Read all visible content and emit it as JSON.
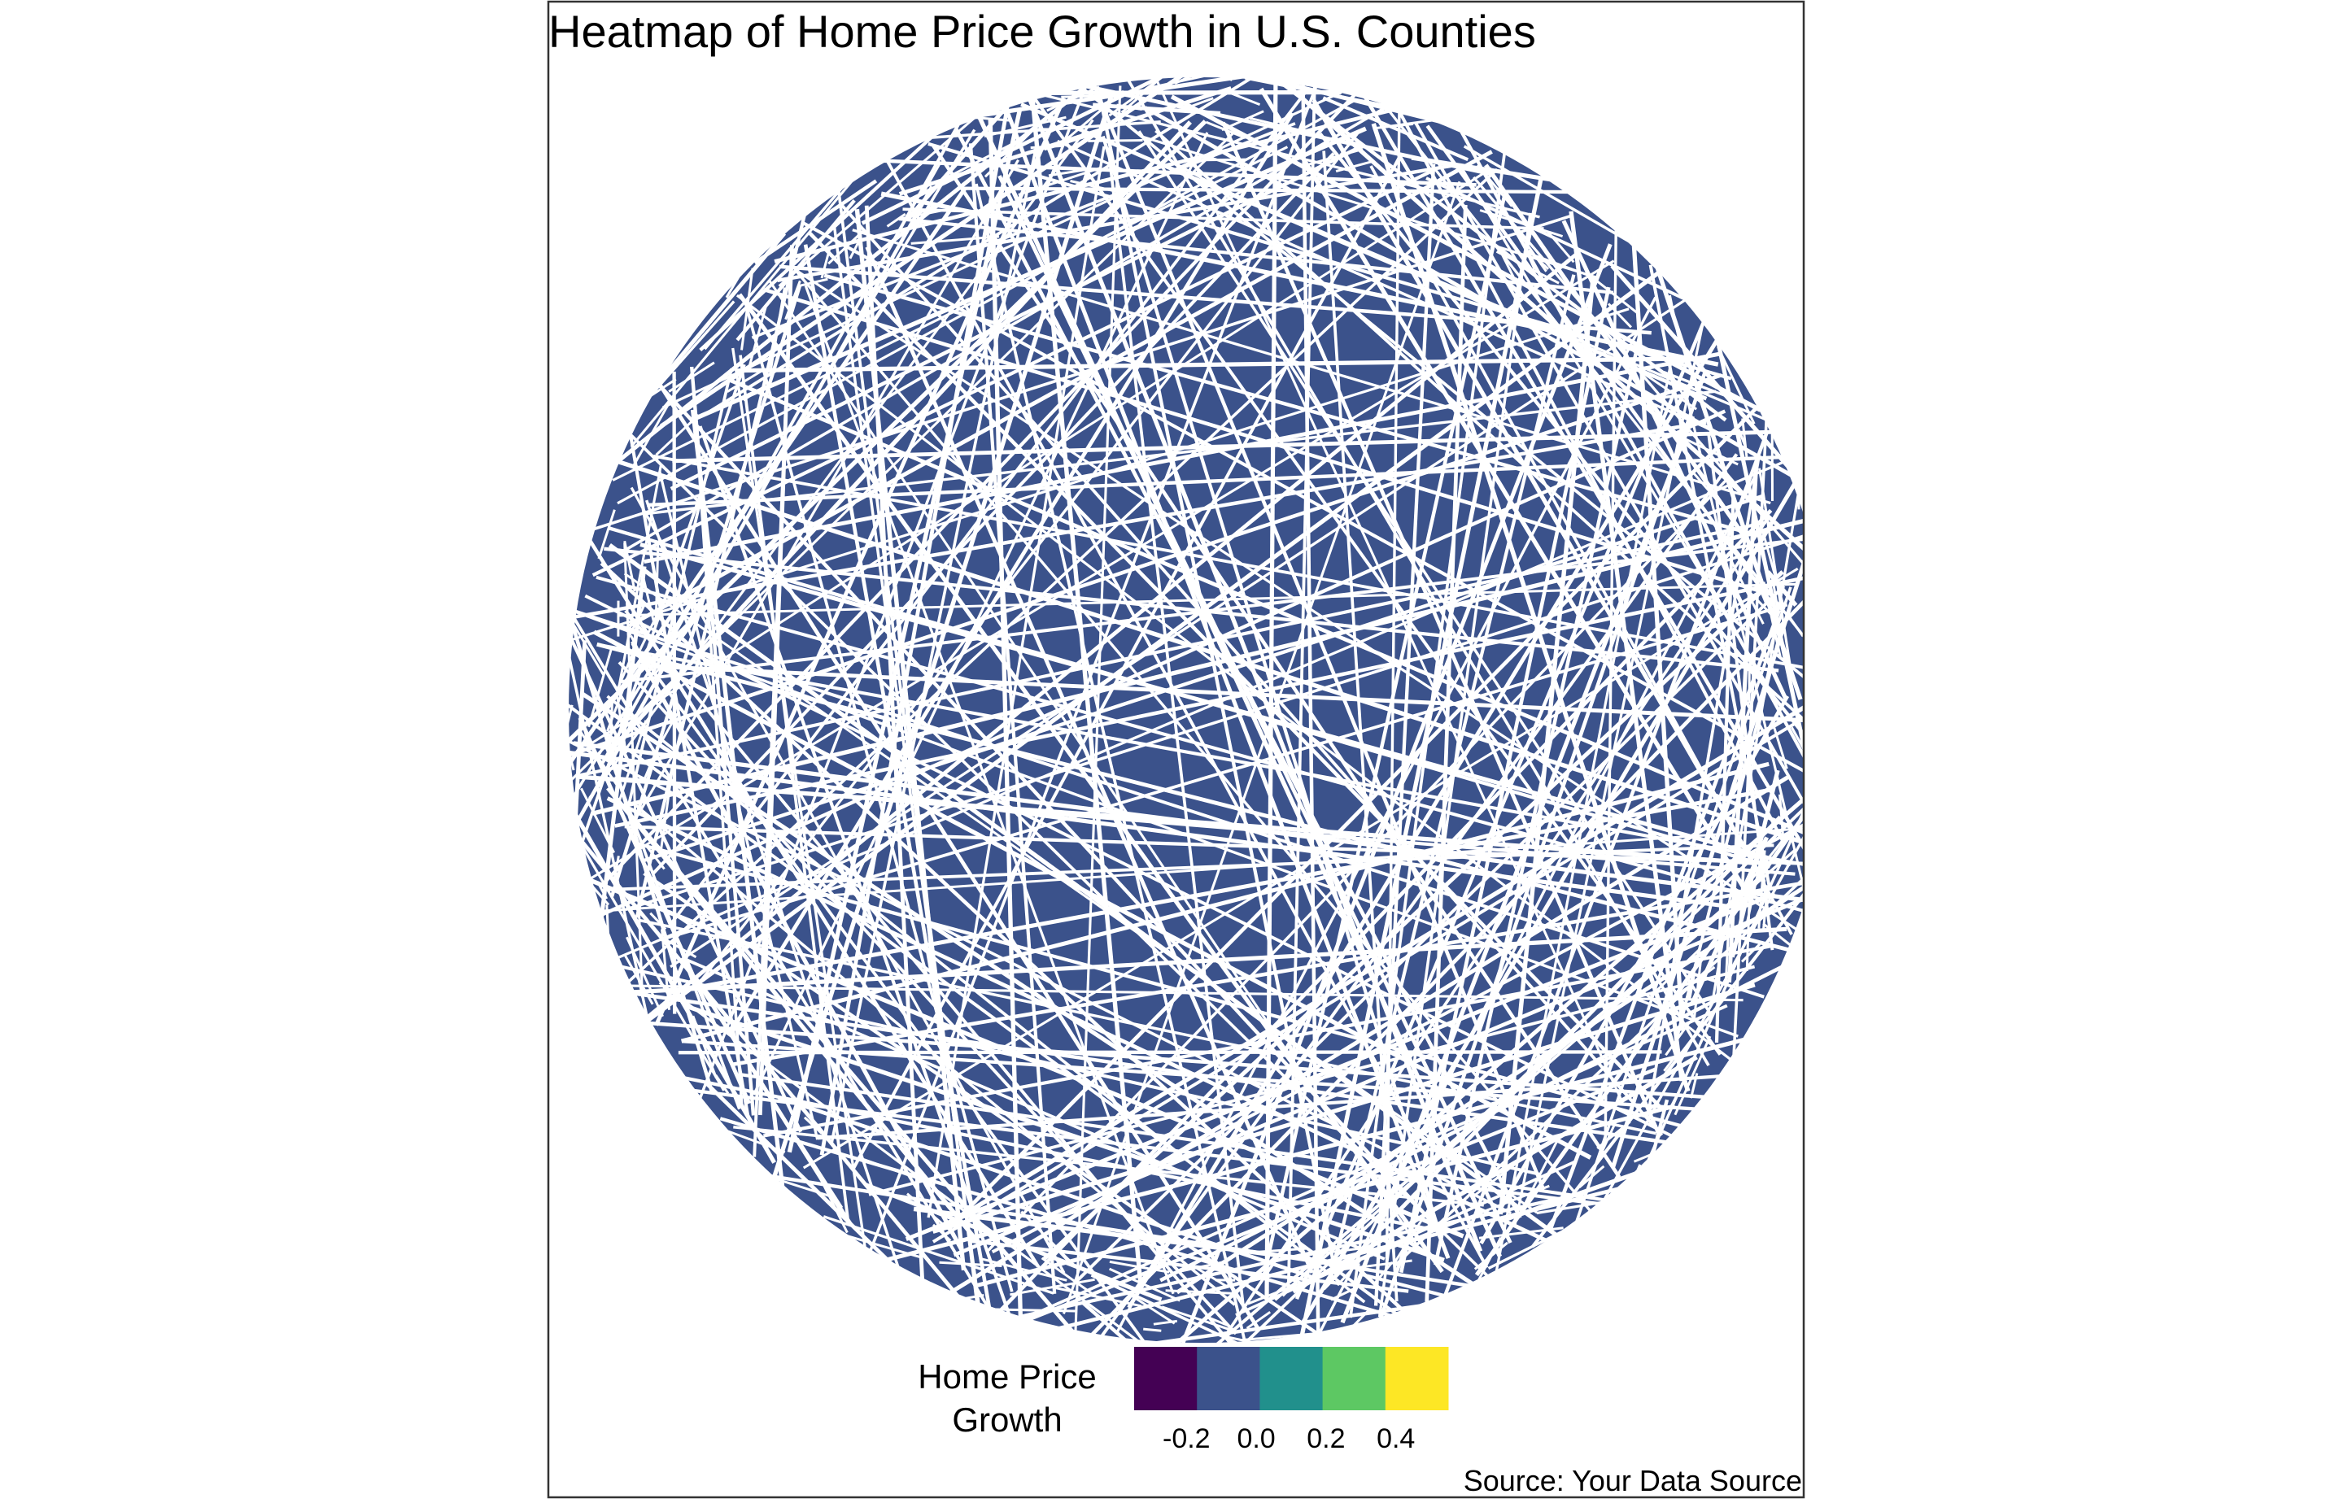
{
  "colors": {
    "background": "#ffffff",
    "panel_border": "#333333",
    "fill": "#21908C",
    "outline": "#ffffff",
    "text": "#000000"
  },
  "chart_data": {
    "type": "heatmap",
    "title": "Heatmap of Home Price Growth in U.S. Counties",
    "caption": "Source: Your Data Source",
    "fill_value_observed": 0.0,
    "legend": {
      "title_lines": [
        "Home Price",
        "Growth"
      ],
      "position": "bottom",
      "scale": "viridis",
      "bins": [
        {
          "value": -0.3,
          "color": "#440154"
        },
        {
          "value": -0.1,
          "color": "#3B528B"
        },
        {
          "value": 0.1,
          "color": "#21908C"
        },
        {
          "value": 0.3,
          "color": "#5DC863"
        },
        {
          "value": 0.5,
          "color": "#FDE725"
        }
      ],
      "range": [
        -0.35,
        0.55
      ],
      "ticks": [
        {
          "value": -0.2,
          "label": "-0.2"
        },
        {
          "value": 0.0,
          "label": "0.0"
        },
        {
          "value": 0.2,
          "label": "0.2"
        },
        {
          "value": 0.4,
          "label": "0.4"
        }
      ]
    }
  }
}
